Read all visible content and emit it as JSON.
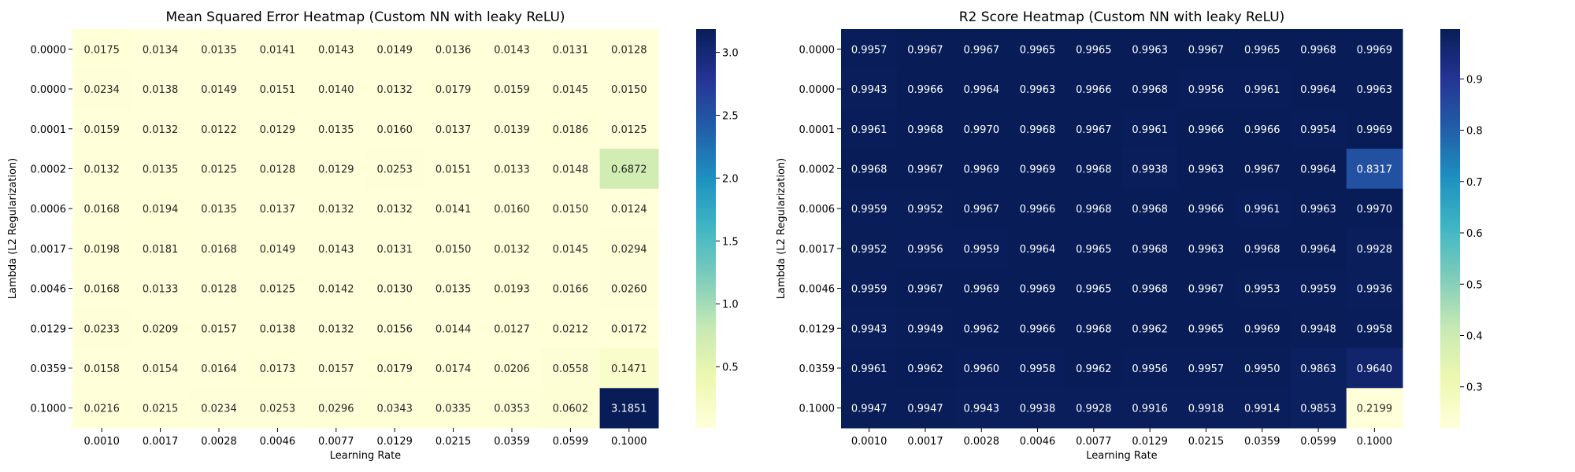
{
  "chart_data": [
    {
      "type": "heatmap",
      "title": "Mean Squared Error Heatmap (Custom NN with leaky ReLU)",
      "xlabel": "Learning Rate",
      "ylabel": "Lambda (L2 Regularization)",
      "x_categories": [
        "0.0010",
        "0.0017",
        "0.0028",
        "0.0046",
        "0.0077",
        "0.0129",
        "0.0215",
        "0.0359",
        "0.0599",
        "0.1000"
      ],
      "y_categories": [
        "0.0000",
        "0.0000",
        "0.0001",
        "0.0002",
        "0.0006",
        "0.0017",
        "0.0046",
        "0.0129",
        "0.0359",
        "0.1000"
      ],
      "values": [
        [
          0.0175,
          0.0134,
          0.0135,
          0.0141,
          0.0143,
          0.0149,
          0.0136,
          0.0143,
          0.0131,
          0.0128
        ],
        [
          0.0234,
          0.0138,
          0.0149,
          0.0151,
          0.014,
          0.0132,
          0.0179,
          0.0159,
          0.0145,
          0.015
        ],
        [
          0.0159,
          0.0132,
          0.0122,
          0.0129,
          0.0135,
          0.016,
          0.0137,
          0.0139,
          0.0186,
          0.0125
        ],
        [
          0.0132,
          0.0135,
          0.0125,
          0.0128,
          0.0129,
          0.0253,
          0.0151,
          0.0133,
          0.0148,
          0.6872
        ],
        [
          0.0168,
          0.0194,
          0.0135,
          0.0137,
          0.0132,
          0.0132,
          0.0141,
          0.016,
          0.015,
          0.0124
        ],
        [
          0.0198,
          0.0181,
          0.0168,
          0.0149,
          0.0143,
          0.0131,
          0.015,
          0.0132,
          0.0145,
          0.0294
        ],
        [
          0.0168,
          0.0133,
          0.0128,
          0.0125,
          0.0142,
          0.013,
          0.0135,
          0.0193,
          0.0166,
          0.026
        ],
        [
          0.0233,
          0.0209,
          0.0157,
          0.0138,
          0.0132,
          0.0156,
          0.0144,
          0.0127,
          0.0212,
          0.0172
        ],
        [
          0.0158,
          0.0154,
          0.0164,
          0.0173,
          0.0157,
          0.0179,
          0.0174,
          0.0206,
          0.0558,
          0.1471
        ],
        [
          0.0216,
          0.0215,
          0.0234,
          0.0253,
          0.0296,
          0.0343,
          0.0335,
          0.0353,
          0.0602,
          3.1851
        ]
      ],
      "colormap": "YlGnBu",
      "vmin": 0.0122,
      "vmax": 3.1851,
      "colorbar_ticks": [
        0.5,
        1.0,
        1.5,
        2.0,
        2.5,
        3.0
      ],
      "colorbar_tick_labels": [
        "0.5",
        "1.0",
        "1.5",
        "2.0",
        "2.5",
        "3.0"
      ]
    },
    {
      "type": "heatmap",
      "title": "R2 Score Heatmap (Custom NN with leaky ReLU)",
      "xlabel": "Learning Rate",
      "ylabel": "Lambda (L2 Regularization)",
      "x_categories": [
        "0.0010",
        "0.0017",
        "0.0028",
        "0.0046",
        "0.0077",
        "0.0129",
        "0.0215",
        "0.0359",
        "0.0599",
        "0.1000"
      ],
      "y_categories": [
        "0.0000",
        "0.0000",
        "0.0001",
        "0.0002",
        "0.0006",
        "0.0017",
        "0.0046",
        "0.0129",
        "0.0359",
        "0.1000"
      ],
      "values": [
        [
          0.9957,
          0.9967,
          0.9967,
          0.9965,
          0.9965,
          0.9963,
          0.9967,
          0.9965,
          0.9968,
          0.9969
        ],
        [
          0.9943,
          0.9966,
          0.9964,
          0.9963,
          0.9966,
          0.9968,
          0.9956,
          0.9961,
          0.9964,
          0.9963
        ],
        [
          0.9961,
          0.9968,
          0.997,
          0.9968,
          0.9967,
          0.9961,
          0.9966,
          0.9966,
          0.9954,
          0.9969
        ],
        [
          0.9968,
          0.9967,
          0.9969,
          0.9969,
          0.9968,
          0.9938,
          0.9963,
          0.9967,
          0.9964,
          0.8317
        ],
        [
          0.9959,
          0.9952,
          0.9967,
          0.9966,
          0.9968,
          0.9968,
          0.9966,
          0.9961,
          0.9963,
          0.997
        ],
        [
          0.9952,
          0.9956,
          0.9959,
          0.9964,
          0.9965,
          0.9968,
          0.9963,
          0.9968,
          0.9964,
          0.9928
        ],
        [
          0.9959,
          0.9967,
          0.9969,
          0.9969,
          0.9965,
          0.9968,
          0.9967,
          0.9953,
          0.9959,
          0.9936
        ],
        [
          0.9943,
          0.9949,
          0.9962,
          0.9966,
          0.9968,
          0.9962,
          0.9965,
          0.9969,
          0.9948,
          0.9958
        ],
        [
          0.9961,
          0.9962,
          0.996,
          0.9958,
          0.9962,
          0.9956,
          0.9957,
          0.995,
          0.9863,
          0.964
        ],
        [
          0.9947,
          0.9947,
          0.9943,
          0.9938,
          0.9928,
          0.9916,
          0.9918,
          0.9914,
          0.9853,
          0.2199
        ]
      ],
      "colormap": "YlGnBu",
      "vmin": 0.2199,
      "vmax": 0.997,
      "colorbar_ticks": [
        0.3,
        0.4,
        0.5,
        0.6,
        0.7,
        0.8,
        0.9
      ],
      "colorbar_tick_labels": [
        "0.3",
        "0.4",
        "0.5",
        "0.6",
        "0.7",
        "0.8",
        "0.9"
      ]
    }
  ]
}
